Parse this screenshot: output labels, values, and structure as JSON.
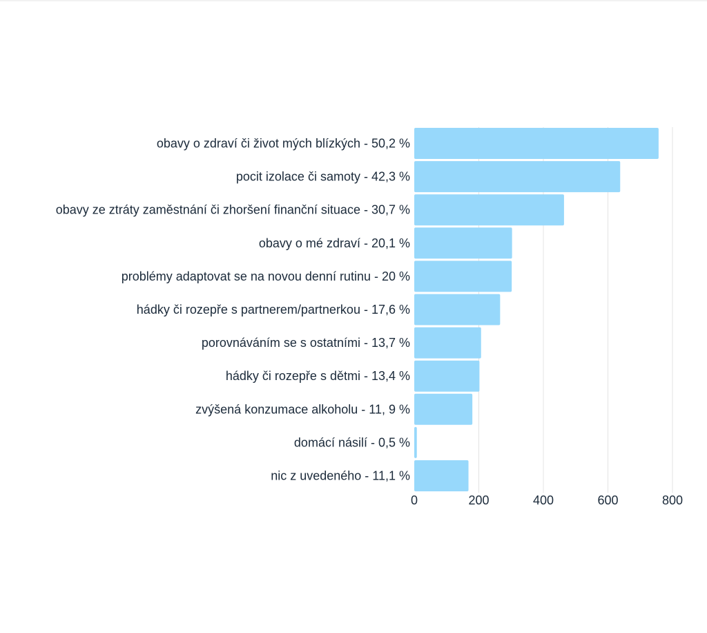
{
  "chart_data": {
    "type": "bar",
    "orientation": "horizontal",
    "title": "",
    "xlabel": "",
    "ylabel": "",
    "categories": [
      "obavy o zdraví či život mých blízkých - 50,2 %",
      "pocit izolace či samoty - 42,3 %",
      "obavy ze ztráty zaměstnání či zhoršení finanční situace - 30,7 %",
      "obavy o mé zdraví - 20,1 %",
      "problémy adaptovat se na novou denní rutinu - 20 %",
      "hádky či rozepře s partnerem/partnerkou - 17,6 %",
      "porovnáváním se s ostatními - 13,7 %",
      "hádky či rozepře s dětmi - 13,4 %",
      "zvýšená konzumace alkoholu - 11, 9 %",
      "domácí násilí - 0,5 %",
      "nic z uvedeného - 11,1 %"
    ],
    "values": [
      757,
      638,
      464,
      303,
      302,
      266,
      207,
      202,
      180,
      8,
      168
    ],
    "xlim": [
      0,
      800
    ],
    "xticks": [
      "0",
      "200",
      "400",
      "600",
      "800"
    ],
    "grid": true,
    "legend": "none",
    "colors": {
      "bar": "#97d8fb",
      "grid": "#e3e3e3",
      "text": "#1b2a3a"
    }
  }
}
